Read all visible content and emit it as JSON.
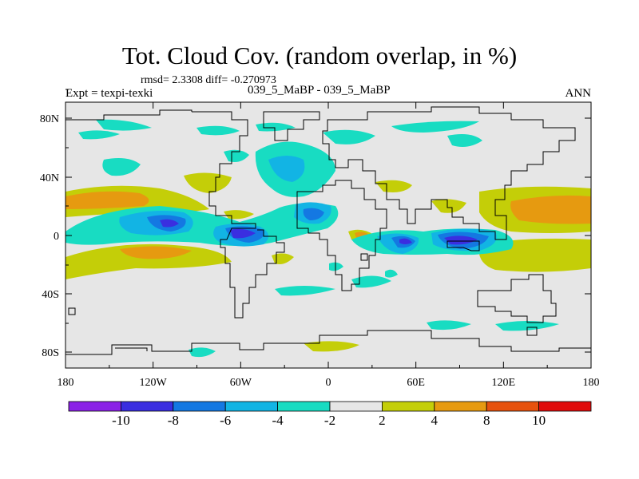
{
  "title": "Tot. Cloud Cov. (random overlap, in %)",
  "stats_text": "rmsd= 2.3308 diff= -0.270973",
  "experiment_label": "Expt = texpi-texki",
  "comparison_label": "039_5_MaBP - 039_5_MaBP",
  "season_label": "ANN",
  "lat_labels": [
    "80N",
    "40N",
    "0",
    "40S",
    "80S"
  ],
  "lon_labels": [
    "180",
    "120W",
    "60W",
    "0",
    "60E",
    "120E",
    "180"
  ],
  "colorbar": {
    "labels": [
      "-10",
      "-8",
      "-6",
      "-4",
      "-2",
      "2",
      "4",
      "8",
      "10"
    ],
    "colors": [
      "#8b22e6",
      "#3a2ee0",
      "#1478e2",
      "#12b4e4",
      "#18dcc2",
      "#e6e6e6",
      "#c4ce08",
      "#e69a10",
      "#e6520e",
      "#e00c0c"
    ]
  },
  "map_background": "#e6e6e6"
}
